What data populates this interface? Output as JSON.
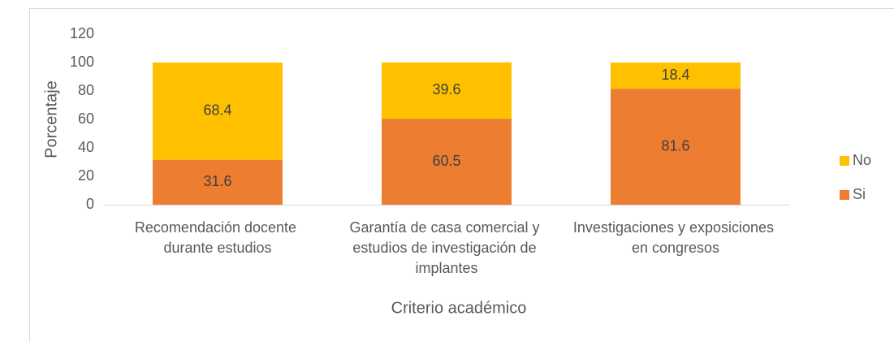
{
  "chart_data": {
    "type": "stacked_bar",
    "categories": [
      "Recomendación docente durante estudios",
      "Garantía de casa comercial y estudios de investigación de implantes",
      "Investigaciones y exposiciones en congresos"
    ],
    "series": [
      {
        "name": "Si",
        "color": "#ED7D31",
        "values": [
          31.6,
          60.5,
          81.6
        ]
      },
      {
        "name": "No",
        "color": "#FFC000",
        "values": [
          68.4,
          39.6,
          18.4
        ]
      }
    ],
    "ylim": [
      0,
      120
    ],
    "yticks": [
      0,
      20,
      40,
      60,
      80,
      100,
      120
    ],
    "ylabel": "Porcentaje",
    "xlabel": "Criterio académico",
    "grid": false,
    "legend": "right"
  }
}
